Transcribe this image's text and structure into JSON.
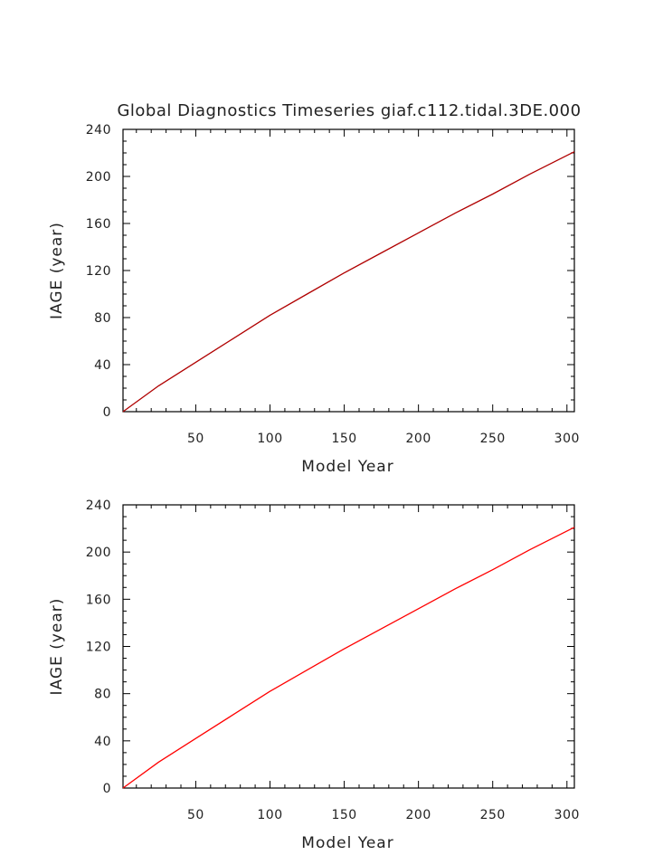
{
  "title": "Global Diagnostics Timeseries giaf.c112.tidal.3DE.000",
  "chart_data": [
    {
      "type": "line",
      "xlabel": "Model Year",
      "ylabel": "IAGE (year)",
      "xlim": [
        1,
        305
      ],
      "ylim": [
        0,
        240
      ],
      "x_ticks": [
        50,
        100,
        150,
        200,
        250,
        300
      ],
      "y_ticks": [
        0,
        40,
        80,
        120,
        160,
        200,
        240
      ],
      "line_color": "#b00000",
      "series": [
        {
          "x": [
            1,
            25,
            50,
            75,
            100,
            125,
            150,
            175,
            200,
            225,
            250,
            275,
            305
          ],
          "values": [
            0,
            22,
            42,
            62,
            82,
            100,
            118,
            135,
            152,
            169,
            185,
            202,
            221
          ]
        }
      ]
    },
    {
      "type": "line",
      "xlabel": "Model Year",
      "ylabel": "IAGE (year)",
      "xlim": [
        1,
        305
      ],
      "ylim": [
        0,
        240
      ],
      "x_ticks": [
        50,
        100,
        150,
        200,
        250,
        300
      ],
      "y_ticks": [
        0,
        40,
        80,
        120,
        160,
        200,
        240
      ],
      "line_color": "#ff0000",
      "series": [
        {
          "x": [
            1,
            25,
            50,
            75,
            100,
            125,
            150,
            175,
            200,
            225,
            250,
            275,
            305
          ],
          "values": [
            0,
            22,
            42,
            62,
            82,
            100,
            118,
            135,
            152,
            169,
            185,
            202,
            221
          ]
        }
      ]
    }
  ]
}
